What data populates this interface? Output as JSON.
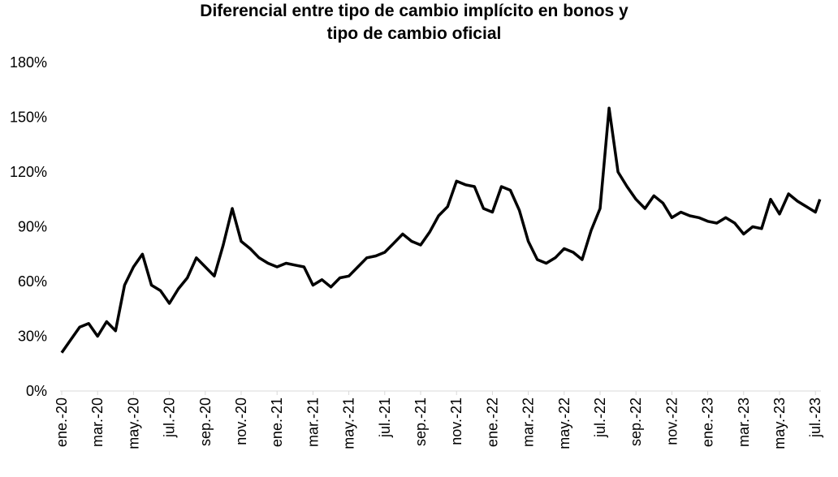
{
  "chart_data": {
    "type": "line",
    "title": [
      "Diferencial entre tipo de cambio implícito en bonos y",
      "tipo de cambio oficial"
    ],
    "color": "#000000",
    "x": [
      0,
      0.5,
      1,
      1.5,
      2,
      2.5,
      3,
      3.5,
      4,
      4.5,
      5,
      5.5,
      6,
      6.5,
      7,
      7.5,
      8,
      8.5,
      9,
      9.5,
      10,
      10.5,
      11,
      11.5,
      12,
      12.5,
      13,
      13.5,
      14,
      14.5,
      15,
      15.5,
      16,
      16.5,
      17,
      17.5,
      18,
      18.5,
      19,
      19.5,
      20,
      20.5,
      21,
      21.5,
      22,
      22.5,
      23,
      23.5,
      24,
      24.5,
      25,
      25.5,
      26,
      26.5,
      27,
      27.5,
      28,
      28.5,
      29,
      29.5,
      30,
      30.5,
      31,
      31.5,
      32,
      32.5,
      33,
      33.5,
      34,
      34.5,
      35,
      35.5,
      36,
      36.5,
      37,
      37.5,
      38,
      38.5,
      39,
      39.5,
      40,
      40.5,
      41,
      41.5,
      42,
      42.25
    ],
    "values": [
      21,
      28,
      35,
      37,
      30,
      38,
      33,
      58,
      68,
      75,
      58,
      55,
      48,
      56,
      62,
      73,
      68,
      63,
      80,
      100,
      82,
      78,
      73,
      70,
      68,
      70,
      69,
      68,
      58,
      61,
      57,
      62,
      63,
      68,
      73,
      74,
      76,
      81,
      86,
      82,
      80,
      87,
      96,
      101,
      115,
      113,
      112,
      100,
      98,
      112,
      110,
      99,
      82,
      72,
      70,
      73,
      78,
      76,
      72,
      88,
      100,
      155,
      120,
      112,
      105,
      100,
      107,
      103,
      95,
      98,
      96,
      95,
      93,
      92,
      95,
      92,
      86,
      90,
      89,
      105,
      97,
      108,
      104,
      101,
      98,
      105
    ],
    "xlim": [
      0,
      42.3
    ],
    "xticks": [
      {
        "value": 0,
        "label": "ene.-20"
      },
      {
        "value": 2,
        "label": "mar.-20"
      },
      {
        "value": 4,
        "label": "may.-20"
      },
      {
        "value": 6,
        "label": "jul.-20"
      },
      {
        "value": 8,
        "label": "sep.-20"
      },
      {
        "value": 10,
        "label": "nov.-20"
      },
      {
        "value": 12,
        "label": "ene.-21"
      },
      {
        "value": 14,
        "label": "mar.-21"
      },
      {
        "value": 16,
        "label": "may.-21"
      },
      {
        "value": 18,
        "label": "jul.-21"
      },
      {
        "value": 20,
        "label": "sep.-21"
      },
      {
        "value": 22,
        "label": "nov.-21"
      },
      {
        "value": 24,
        "label": "ene.-22"
      },
      {
        "value": 26,
        "label": "mar.-22"
      },
      {
        "value": 28,
        "label": "may.-22"
      },
      {
        "value": 30,
        "label": "jul.-22"
      },
      {
        "value": 32,
        "label": "sep.-22"
      },
      {
        "value": 34,
        "label": "nov.-22"
      },
      {
        "value": 36,
        "label": "ene.-23"
      },
      {
        "value": 38,
        "label": "mar.-23"
      },
      {
        "value": 40,
        "label": "may.-23"
      },
      {
        "value": 42,
        "label": "jul.-23"
      }
    ],
    "ylim": [
      0,
      180
    ],
    "yticks": [
      {
        "value": 0,
        "label": "0%"
      },
      {
        "value": 30,
        "label": "30%"
      },
      {
        "value": 60,
        "label": "60%"
      },
      {
        "value": 90,
        "label": "90%"
      },
      {
        "value": 120,
        "label": "120%"
      },
      {
        "value": 150,
        "label": "150%"
      },
      {
        "value": 180,
        "label": "180%"
      }
    ],
    "grid": false
  }
}
